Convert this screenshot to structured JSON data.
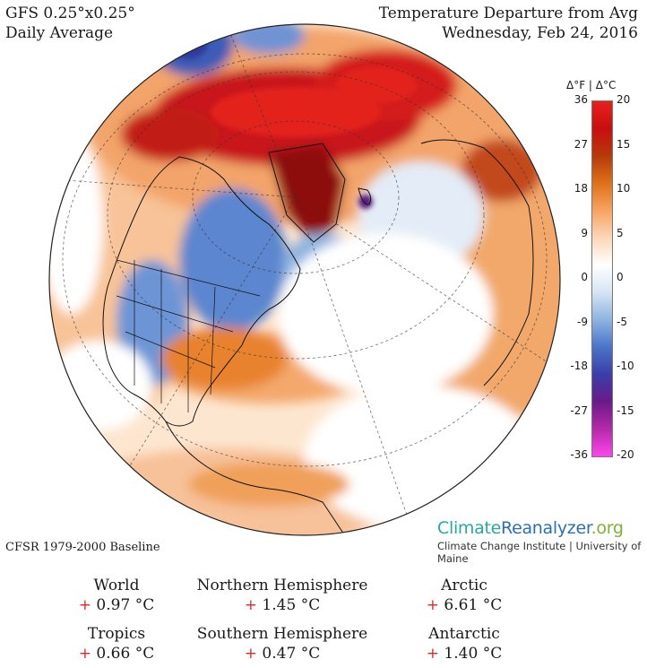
{
  "header": {
    "model": "GFS 0.25°x0.25°",
    "period": "Daily Average",
    "title": "Temperature Departure from Avg",
    "date": "Wednesday, Feb 24, 2016"
  },
  "legend": {
    "title": "Δ°F  |  Δ°C",
    "fahrenheit_ticks": [
      "36",
      "27",
      "18",
      "9",
      "0",
      "-9",
      "-18",
      "-27",
      "-36"
    ],
    "celsius_ticks": [
      "20",
      "15",
      "10",
      "5",
      "0",
      "-5",
      "-10",
      "-15",
      "-20"
    ],
    "colors": [
      "#ff44ee",
      "#b52aa8",
      "#6a1a8a",
      "#3b3ea8",
      "#4a74c8",
      "#8fb3e0",
      "#d6e4f4",
      "#ffffff",
      "#fcd7b8",
      "#f6a461",
      "#e0701a",
      "#b53a0a",
      "#c80f0f",
      "#e8201a"
    ]
  },
  "branding": {
    "site_part1": "Climate",
    "site_part2": "Reanalyzer",
    "site_part3": ".org",
    "institution": "Climate Change Institute | University of Maine"
  },
  "baseline": "CFSR 1979-2000 Baseline",
  "stats": [
    {
      "region": "World",
      "sign": "+",
      "value": "0.97 °C"
    },
    {
      "region": "Northern Hemisphere",
      "sign": "+",
      "value": "1.45 °C"
    },
    {
      "region": "Arctic",
      "sign": "+",
      "value": "6.61 °C"
    },
    {
      "region": "Tropics",
      "sign": "+",
      "value": "0.66 °C"
    },
    {
      "region": "Southern Hemisphere",
      "sign": "+",
      "value": "0.47 °C"
    },
    {
      "region": "Antarctic",
      "sign": "+",
      "value": "1.40 °C"
    }
  ],
  "map": {
    "projection": "orthographic, North America / Arctic view",
    "colors": {
      "ocean_base": "#fde6d0",
      "warm_light": "#f8b98a",
      "warm": "#ec8a3a",
      "hot": "#c8161a",
      "very_hot": "#e3231c",
      "cool": "#9cc0e6",
      "cold": "#4b74c4",
      "very_cold": "#3446a8",
      "neutral": "#ffffff"
    }
  }
}
